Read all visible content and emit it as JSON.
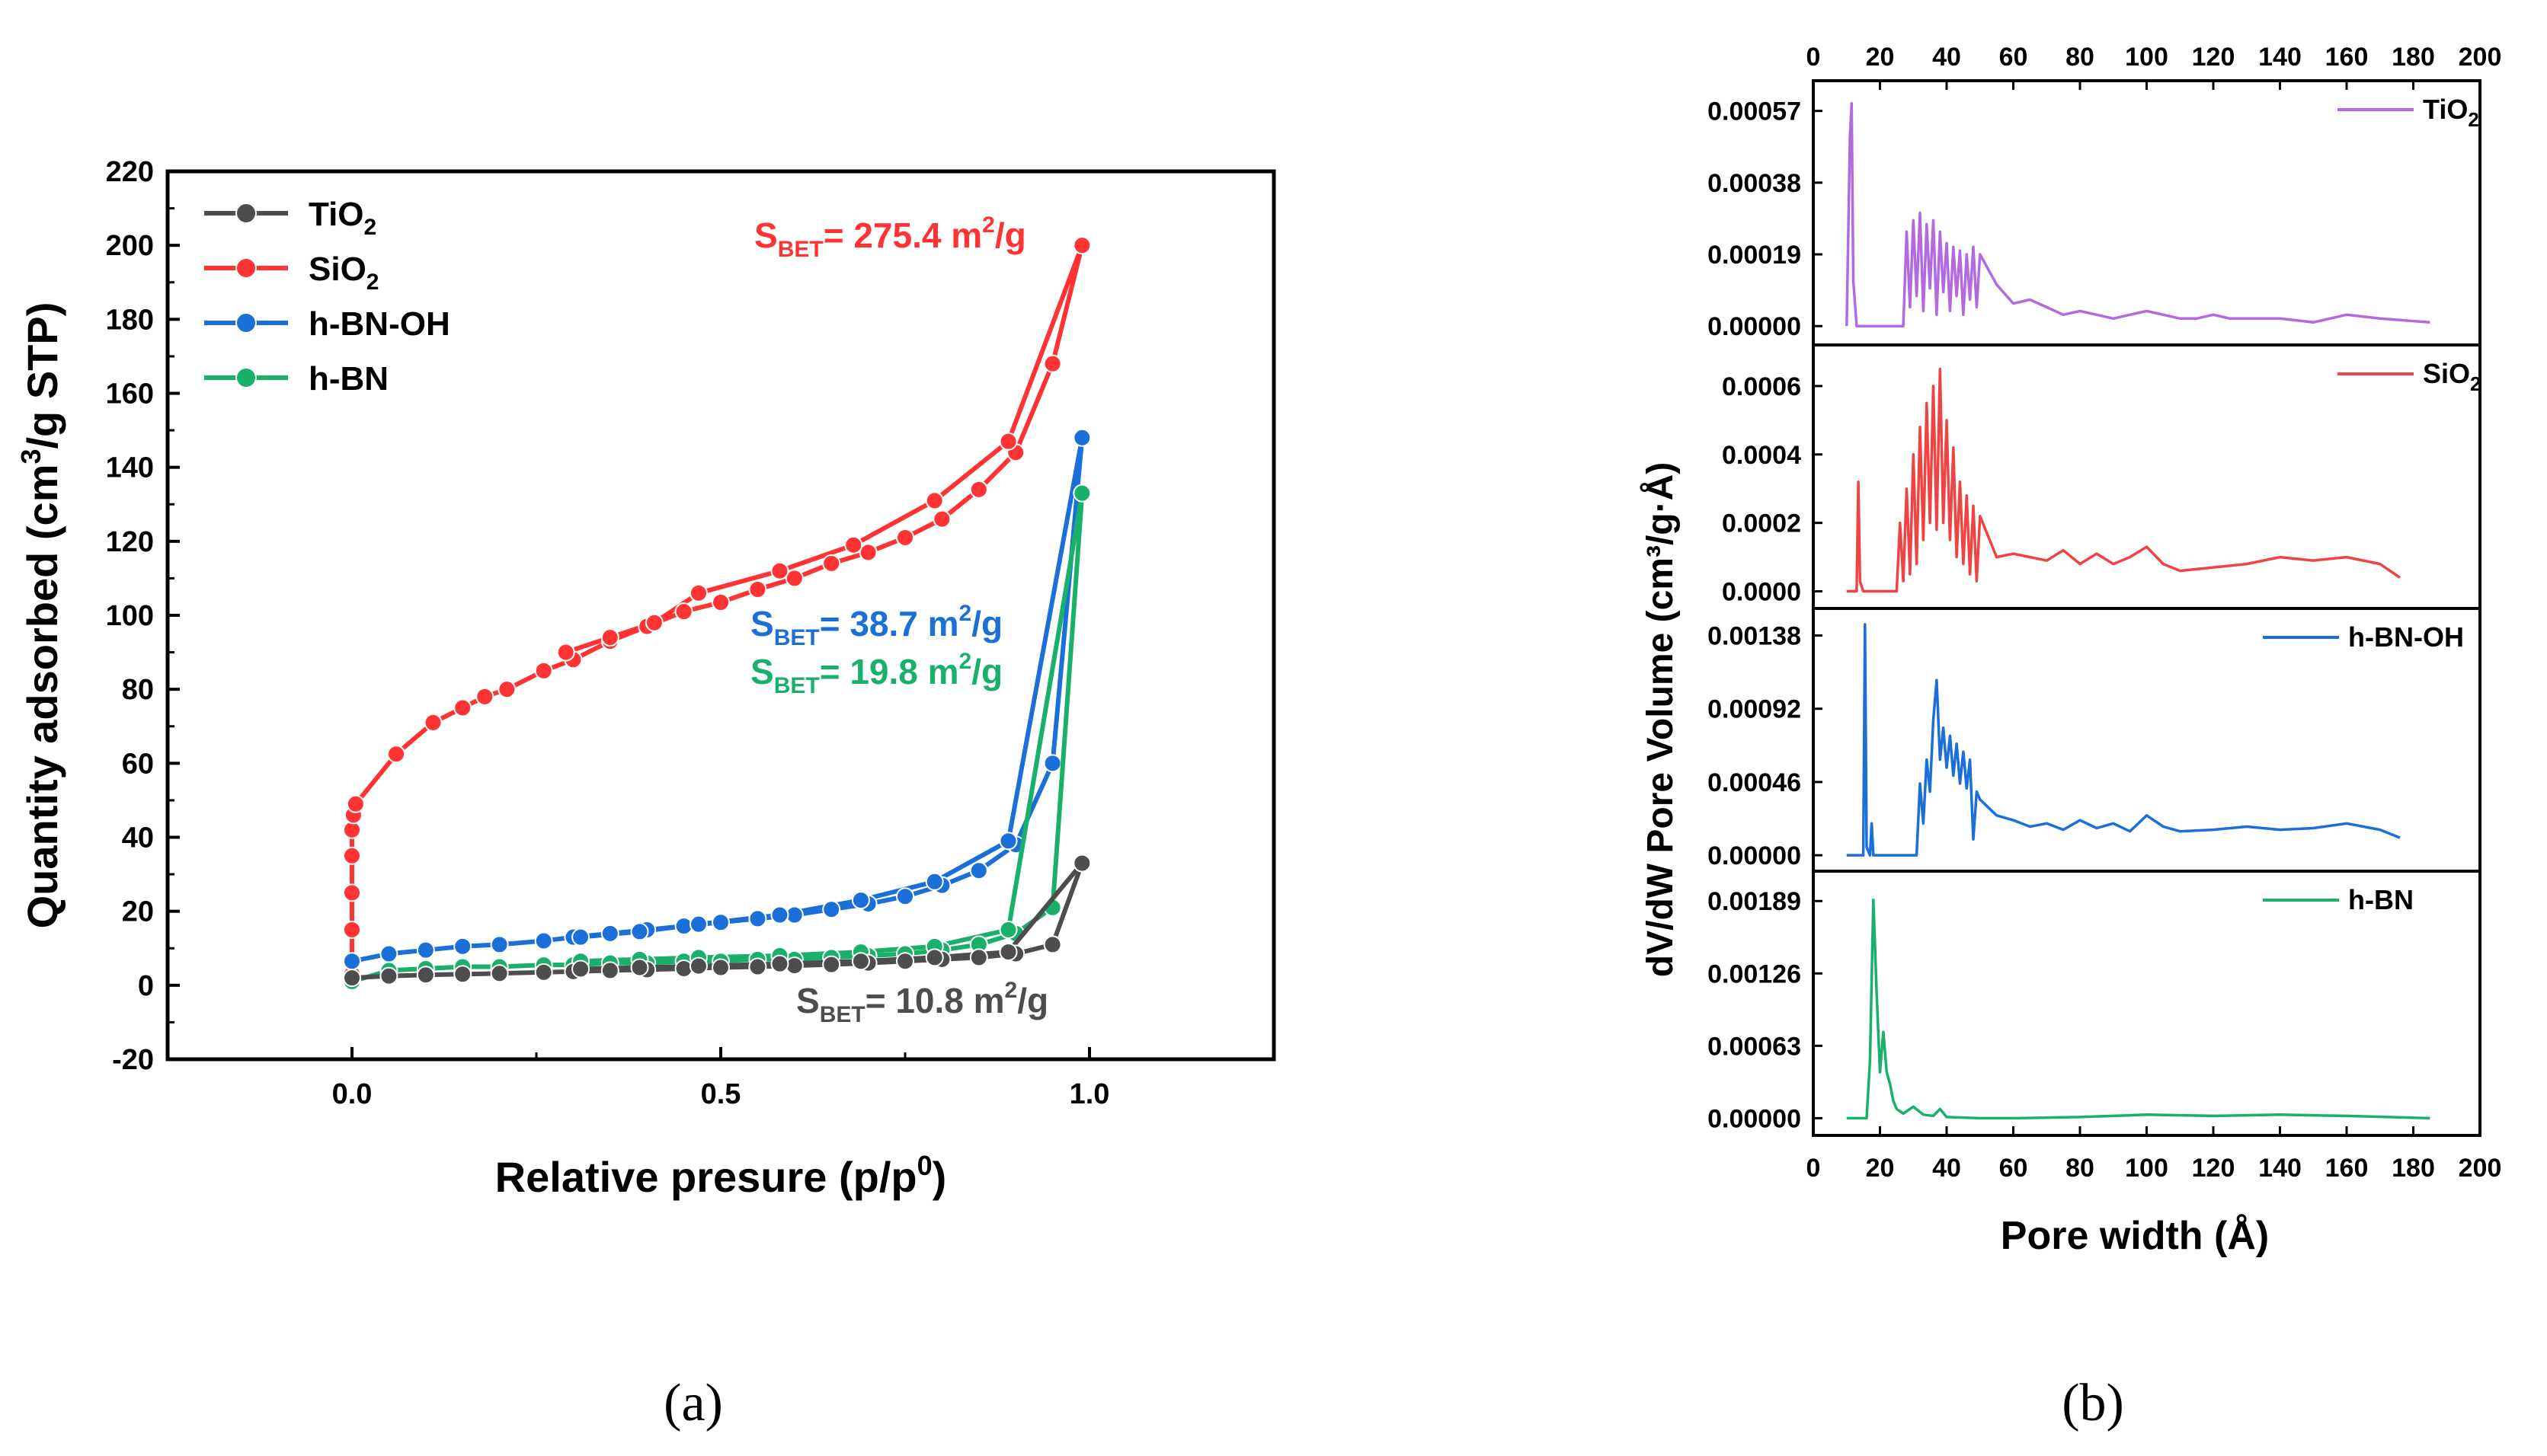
{
  "panel_labels": {
    "a": "(a)",
    "b": "(b)"
  },
  "chart_data": [
    {
      "type": "line",
      "panel": "a",
      "xlabel": "Relative presure (p/p",
      "xlabel_sup": "0",
      "xlabel_end": ")",
      "ylabel": "Quantity adsorbed (cm",
      "ylabel_sup": "3",
      "ylabel_end": "/g STP)",
      "xlim": [
        -0.25,
        1.25
      ],
      "ylim": [
        -20,
        220
      ],
      "xticks": [
        "0.0",
        "0.5",
        "1.0"
      ],
      "yticks": [
        "-20",
        "0",
        "20",
        "40",
        "60",
        "80",
        "100",
        "120",
        "140",
        "160",
        "180",
        "200",
        "220"
      ],
      "legend_position": "top-left",
      "legend": [
        {
          "name": "TiO",
          "sub": "2",
          "color": "#4d4d4d"
        },
        {
          "name": "SiO",
          "sub": "2",
          "color": "#ff3333"
        },
        {
          "name": "h-BN-OH",
          "sub": "",
          "color": "#1a6fd9"
        },
        {
          "name": "h-BN",
          "sub": "",
          "color": "#19b06a"
        }
      ],
      "series": [
        {
          "name": "SiO2",
          "color": "#ff3333",
          "ads_x": [
            0.0,
            0.0,
            0.0,
            0.0,
            0.0,
            0.002,
            0.005,
            0.06,
            0.11,
            0.15,
            0.18,
            0.21,
            0.26,
            0.3,
            0.35,
            0.4,
            0.45,
            0.5,
            0.55,
            0.6,
            0.65,
            0.7,
            0.75,
            0.8,
            0.85,
            0.9,
            0.95,
            0.99
          ],
          "ads_y": [
            3,
            15,
            25,
            35,
            42,
            46,
            49,
            62.5,
            71,
            75,
            78,
            80,
            85,
            88,
            93,
            97,
            101,
            103.5,
            107,
            110,
            114,
            117,
            121,
            126,
            134,
            144,
            168,
            200
          ],
          "des_x": [
            0.99,
            0.89,
            0.79,
            0.68,
            0.58,
            0.47,
            0.41,
            0.35,
            0.29
          ],
          "des_y": [
            200,
            147,
            131,
            119,
            112,
            106,
            98,
            94,
            90
          ],
          "annotation": {
            "text": "S",
            "sub": "BET",
            "rest": "= 275.4 m",
            "sup": "2",
            "end": "/g"
          }
        },
        {
          "name": "h-BN-OH",
          "color": "#1a6fd9",
          "ads_x": [
            0.0,
            0.05,
            0.1,
            0.15,
            0.2,
            0.26,
            0.3,
            0.35,
            0.4,
            0.45,
            0.5,
            0.55,
            0.6,
            0.65,
            0.7,
            0.75,
            0.8,
            0.85,
            0.9,
            0.95,
            0.99
          ],
          "ads_y": [
            6.5,
            8.5,
            9.5,
            10.5,
            11,
            12,
            13,
            14,
            15,
            16,
            17,
            18,
            19,
            20.5,
            22,
            24,
            27,
            31,
            38,
            60,
            148
          ],
          "des_x": [
            0.99,
            0.89,
            0.79,
            0.69,
            0.58,
            0.47,
            0.39,
            0.31
          ],
          "des_y": [
            148,
            39,
            28,
            23,
            19,
            16.5,
            14.5,
            13
          ],
          "annotation": {
            "text": "S",
            "sub": "BET",
            "rest": "= 38.7 m",
            "sup": "2",
            "end": "/g"
          }
        },
        {
          "name": "h-BN",
          "color": "#19b06a",
          "ads_x": [
            0.0,
            0.05,
            0.1,
            0.15,
            0.2,
            0.26,
            0.3,
            0.35,
            0.4,
            0.45,
            0.5,
            0.55,
            0.6,
            0.65,
            0.7,
            0.75,
            0.8,
            0.85,
            0.9,
            0.95,
            0.99
          ],
          "ads_y": [
            1,
            4,
            4.5,
            5,
            5,
            5.5,
            5.5,
            6,
            6,
            6.5,
            6.5,
            7,
            7,
            7.5,
            8,
            8.5,
            9.5,
            11,
            14,
            21,
            133
          ],
          "des_x": [
            0.99,
            0.89,
            0.79,
            0.69,
            0.58,
            0.47,
            0.39,
            0.31
          ],
          "des_y": [
            133,
            15,
            10.5,
            9,
            8,
            7.5,
            7,
            6.5
          ],
          "annotation": {
            "text": "S",
            "sub": "BET",
            "rest": "= 19.8 m",
            "sup": "2",
            "end": "/g"
          }
        },
        {
          "name": "TiO2",
          "color": "#4d4d4d",
          "ads_x": [
            0.0,
            0.05,
            0.1,
            0.15,
            0.2,
            0.26,
            0.3,
            0.35,
            0.4,
            0.45,
            0.5,
            0.55,
            0.6,
            0.65,
            0.7,
            0.75,
            0.8,
            0.85,
            0.9,
            0.95,
            0.99
          ],
          "ads_y": [
            2,
            2.5,
            2.8,
            3,
            3.2,
            3.5,
            3.7,
            4,
            4.2,
            4.5,
            4.8,
            5,
            5.3,
            5.6,
            6,
            6.5,
            7,
            7.5,
            8.5,
            11,
            33
          ],
          "des_x": [
            0.99,
            0.89,
            0.79,
            0.69,
            0.58,
            0.47,
            0.39,
            0.31
          ],
          "des_y": [
            33,
            9,
            7.5,
            6.5,
            5.8,
            5.2,
            4.8,
            4.4
          ],
          "annotation": {
            "text": "S",
            "sub": "BET",
            "rest": "= 10.8 m",
            "sup": "2",
            "end": "/g"
          }
        }
      ]
    },
    {
      "type": "line",
      "panel": "b",
      "xlabel": "Pore width (Å)",
      "ylabel": "dV/dW Pore Volume (cm³/g·Å)",
      "xlim": [
        0,
        200
      ],
      "xticks": [
        "0",
        "20",
        "40",
        "60",
        "80",
        "100",
        "120",
        "140",
        "160",
        "180",
        "200"
      ],
      "subplots": [
        {
          "name": "TiO",
          "sub": "2",
          "color": "#b36ae0",
          "ylim": [
            -5e-05,
            0.00065
          ],
          "yticks": [
            "0.00000",
            "0.00019",
            "0.00038",
            "0.00057"
          ],
          "tick_values": [
            0,
            0.00019,
            0.00038,
            0.00057
          ],
          "x": [
            10,
            11,
            11.5,
            12,
            13,
            14,
            27,
            28,
            29,
            30,
            31,
            32,
            33,
            34,
            35,
            36,
            37,
            38,
            39,
            40,
            41,
            42,
            43,
            44,
            45,
            46,
            47,
            48,
            49,
            50,
            55,
            60,
            65,
            70,
            75,
            80,
            85,
            90,
            95,
            100,
            105,
            110,
            115,
            120,
            125,
            130,
            140,
            150,
            160,
            170,
            185
          ],
          "y": [
            0.0,
            0.0005,
            0.00059,
            0.00012,
            0.0,
            0.0,
            0.0,
            0.00025,
            5e-05,
            0.00028,
            8e-05,
            0.0003,
            4e-05,
            0.00027,
            0.0001,
            0.00028,
            3e-05,
            0.00025,
            9e-05,
            0.00022,
            4e-05,
            0.00021,
            8e-05,
            0.0002,
            3e-05,
            0.00019,
            7e-05,
            0.00021,
            5e-05,
            0.00019,
            0.00011,
            6e-05,
            7e-05,
            5e-05,
            3e-05,
            4e-05,
            3e-05,
            2e-05,
            3e-05,
            4e-05,
            3e-05,
            2e-05,
            2e-05,
            3e-05,
            2e-05,
            2e-05,
            2e-05,
            1e-05,
            3e-05,
            2e-05,
            1e-05
          ]
        },
        {
          "name": "SiO",
          "sub": "2",
          "color": "#ee4444",
          "ylim": [
            -5e-05,
            0.00072
          ],
          "yticks": [
            "0.0000",
            "0.0002",
            "0.0004",
            "0.0006"
          ],
          "tick_values": [
            0,
            0.0002,
            0.0004,
            0.0006
          ],
          "x": [
            10,
            13,
            13.5,
            14,
            15,
            25,
            26,
            27,
            28,
            29,
            30,
            31,
            32,
            33,
            34,
            35,
            36,
            37,
            38,
            39,
            40,
            41,
            42,
            43,
            44,
            45,
            46,
            47,
            48,
            49,
            50,
            55,
            60,
            65,
            70,
            75,
            80,
            85,
            90,
            95,
            100,
            105,
            110,
            120,
            130,
            140,
            150,
            160,
            170,
            176
          ],
          "y": [
            0.0,
            0.0,
            0.00032,
            3e-05,
            0.0,
            0.0,
            0.0002,
            3e-05,
            0.0003,
            5e-05,
            0.0004,
            8e-05,
            0.00048,
            0.00015,
            0.00055,
            0.0002,
            0.0006,
            0.00018,
            0.00065,
            0.0002,
            0.0005,
            0.00015,
            0.00042,
            0.0001,
            0.00032,
            8e-05,
            0.00028,
            5e-05,
            0.00025,
            3e-05,
            0.00022,
            0.0001,
            0.00011,
            0.0001,
            9e-05,
            0.00012,
            8e-05,
            0.00011,
            8e-05,
            0.0001,
            0.00013,
            8e-05,
            6e-05,
            7e-05,
            8e-05,
            0.0001,
            9e-05,
            0.0001,
            8e-05,
            4e-05
          ]
        },
        {
          "name": "h-BN-OH",
          "sub": "",
          "color": "#1a6fd9",
          "ylim": [
            -0.0001,
            0.00155
          ],
          "yticks": [
            "0.00000",
            "0.00046",
            "0.00092",
            "0.00138"
          ],
          "tick_values": [
            0,
            0.00046,
            0.00092,
            0.00138
          ],
          "x": [
            10,
            15,
            15.5,
            16,
            17,
            17.5,
            18,
            19,
            31,
            32,
            33,
            34,
            35,
            36,
            37,
            38,
            39,
            40,
            41,
            42,
            43,
            44,
            45,
            46,
            47,
            48,
            49,
            50,
            55,
            60,
            65,
            70,
            75,
            80,
            85,
            90,
            95,
            100,
            105,
            110,
            120,
            130,
            140,
            150,
            160,
            170,
            176
          ],
          "y": [
            0.0,
            0.0,
            0.00145,
            5e-05,
            0.0,
            0.0002,
            0.0,
            0.0,
            0.0,
            0.00045,
            0.0002,
            0.0006,
            0.0004,
            0.00085,
            0.0011,
            0.0006,
            0.0008,
            0.00055,
            0.00075,
            0.0005,
            0.0007,
            0.00045,
            0.00065,
            0.00042,
            0.0006,
            0.0001,
            0.0004,
            0.00035,
            0.00025,
            0.00022,
            0.00018,
            0.0002,
            0.00016,
            0.00022,
            0.00017,
            0.0002,
            0.00015,
            0.00025,
            0.00018,
            0.00015,
            0.00016,
            0.00018,
            0.00016,
            0.00017,
            0.0002,
            0.00016,
            0.00011
          ]
        },
        {
          "name": "h-BN",
          "sub": "",
          "color": "#19b06a",
          "ylim": [
            -0.00015,
            0.00215
          ],
          "yticks": [
            "0.00000",
            "0.00063",
            "0.00126",
            "0.00189"
          ],
          "tick_values": [
            0,
            0.00063,
            0.00126,
            0.00189
          ],
          "x": [
            10,
            16,
            17,
            18,
            19,
            20,
            21,
            22,
            23,
            24,
            25,
            27,
            30,
            33,
            36,
            38,
            40,
            50,
            60,
            80,
            100,
            120,
            140,
            160,
            185
          ],
          "y": [
            0.0,
            0.0,
            0.0005,
            0.0019,
            0.0011,
            0.0004,
            0.00075,
            0.0004,
            0.0003,
            0.00015,
            8e-05,
            4e-05,
            0.0001,
            3e-05,
            2e-05,
            8e-05,
            1e-05,
            0.0,
            0.0,
            1e-05,
            3e-05,
            2e-05,
            3e-05,
            2e-05,
            0.0
          ]
        }
      ]
    }
  ]
}
